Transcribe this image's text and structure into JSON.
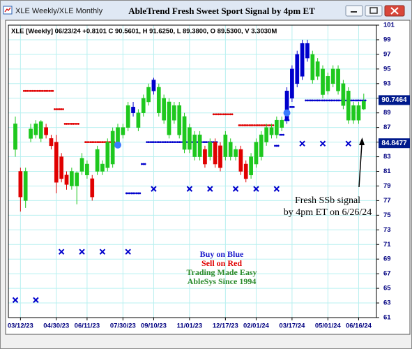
{
  "window": {
    "title": "XLE Weekly/XLE Monthly"
  },
  "chart_data": {
    "type": "candlestick",
    "title": "AbleTrend Fresh Sweet Sport Signal by 4pm ET",
    "subtitle": "XLE [Weekly] 06/23/24 +0.8101 C 90.5601, H 91.6250, L 89.3800, O 89.5300, V 3.3030M",
    "categories": [
      null,
      "03/12/23",
      null,
      null,
      null,
      null,
      null,
      null,
      "04/30/23",
      null,
      null,
      null,
      null,
      null,
      "06/11/23",
      null,
      null,
      null,
      null,
      null,
      null,
      "07/30/23",
      null,
      null,
      null,
      null,
      null,
      "09/10/23",
      null,
      null,
      null,
      null,
      null,
      null,
      "11/01/23",
      null,
      null,
      null,
      null,
      null,
      null,
      "12/17/23",
      null,
      null,
      null,
      null,
      null,
      "02/01/24",
      null,
      null,
      null,
      null,
      null,
      null,
      "03/17/24",
      null,
      null,
      null,
      null,
      null,
      null,
      "05/01/24",
      null,
      null,
      null,
      null,
      null,
      "06/16/24",
      null
    ],
    "open": [
      84,
      81,
      77,
      85.5,
      86,
      85.5,
      87,
      85.5,
      85,
      83,
      80.5,
      79,
      79,
      81,
      80.5,
      80,
      81,
      81,
      81.5,
      82,
      85,
      86,
      87,
      89,
      89,
      89,
      90.5,
      92,
      92.5,
      91,
      86,
      90,
      86,
      88.5,
      84,
      86,
      83,
      84,
      83,
      85,
      84.5,
      83,
      85,
      83,
      84,
      82,
      80.5,
      82,
      83,
      85,
      86,
      86,
      87,
      88,
      91,
      93,
      94,
      98.5,
      97,
      96,
      95,
      92,
      95,
      95,
      93,
      92,
      88,
      88,
      89.53
    ],
    "high": [
      88.5,
      81.5,
      81.5,
      87.5,
      88,
      88,
      87.5,
      86,
      86,
      83.5,
      81,
      81.5,
      81,
      83.5,
      82.5,
      80.5,
      84.5,
      82.5,
      85.5,
      87,
      87.5,
      87.5,
      90.5,
      90.5,
      89.5,
      91.5,
      93,
      93.8,
      93,
      91.5,
      91,
      90.5,
      90.5,
      89,
      87.5,
      86.5,
      86.5,
      84.5,
      85.5,
      85.5,
      85,
      86.5,
      85.5,
      84.5,
      84.5,
      82.5,
      83.5,
      85.5,
      86.5,
      87.5,
      87.5,
      88.5,
      88.5,
      92.5,
      95.5,
      97.5,
      99,
      99,
      97.5,
      96.5,
      95.5,
      94.5,
      95.5,
      95.5,
      93.5,
      92.5,
      90.5,
      90.5,
      91.625
    ],
    "low": [
      83,
      75.5,
      76,
      85,
      85.5,
      85,
      85.5,
      84,
      78,
      79.5,
      78.5,
      78.5,
      76.5,
      80.5,
      80,
      77,
      80.5,
      80.5,
      81,
      81.5,
      84.5,
      85.5,
      86.5,
      88.5,
      86.5,
      88.5,
      90,
      91.5,
      88.5,
      87.5,
      85.5,
      87.5,
      85.5,
      83.5,
      83.5,
      82.5,
      82.5,
      81.5,
      82.5,
      81.5,
      81,
      82.5,
      82.5,
      82.5,
      80.5,
      79.5,
      80,
      81.5,
      82.5,
      84.5,
      85.5,
      85.5,
      86.5,
      87.5,
      90.5,
      92.5,
      93.5,
      96,
      93,
      93.5,
      91,
      91.5,
      92.5,
      91.5,
      89.5,
      87.5,
      87.5,
      87.5,
      89.38
    ],
    "close": [
      87.5,
      77.5,
      81,
      86.8,
      87.5,
      87.8,
      86,
      84.5,
      79.5,
      80,
      79.2,
      81,
      80.8,
      82.8,
      82,
      77.5,
      84,
      82,
      85,
      86.5,
      87,
      87,
      90,
      89.8,
      87,
      91,
      92.5,
      93.5,
      89,
      88,
      90.5,
      88,
      90,
      84,
      87,
      83,
      86,
      82,
      85,
      82,
      81.5,
      86,
      83,
      84,
      81,
      80,
      83,
      85,
      86,
      87,
      87,
      88,
      88,
      92,
      95,
      97,
      98.5,
      96.5,
      93.5,
      94,
      91.5,
      94,
      93,
      92,
      90,
      88,
      90,
      90,
      90.5601
    ],
    "colors": [
      "#1ec81e",
      "#e00000",
      "#1ec81e",
      "#1ec81e",
      "#1ec81e",
      "#1ec81e",
      "#e00000",
      "#e00000",
      "#e00000",
      "#e00000",
      "#e00000",
      "#1ec81e",
      "#1ec81e",
      "#1ec81e",
      "#1ec81e",
      "#e00000",
      "#1ec81e",
      "#1ec81e",
      "#1ec81e",
      "#1ec81e",
      "#1ec81e",
      "#1ec81e",
      "#1ec81e",
      "#0000cc",
      "#1ec81e",
      "#1ec81e",
      "#1ec81e",
      "#0000cc",
      "#1ec81e",
      "#1ec81e",
      "#1ec81e",
      "#1ec81e",
      "#1ec81e",
      "#1ec81e",
      "#1ec81e",
      "#1ec81e",
      "#1ec81e",
      "#e00000",
      "#1ec81e",
      "#e00000",
      "#e00000",
      "#1ec81e",
      "#1ec81e",
      "#1ec81e",
      "#e00000",
      "#e00000",
      "#1ec81e",
      "#1ec81e",
      "#1ec81e",
      "#1ec81e",
      "#1ec81e",
      "#1ec81e",
      "#1ec81e",
      "#0000cc",
      "#0000cc",
      "#0000cc",
      "#0000cc",
      "#0000cc",
      "#1ec81e",
      "#1ec81e",
      "#1ec81e",
      "#1ec81e",
      "#1ec81e",
      "#1ec81e",
      "#1ec81e",
      "#1ec81e",
      "#1ec81e",
      "#1ec81e",
      "#1ec81e"
    ],
    "series": [
      {
        "color": "#e00000",
        "marker": "dots",
        "values": [
          null,
          null,
          92,
          92,
          92,
          92,
          92,
          92,
          89.5,
          89.5,
          87.5,
          87.5,
          87.5,
          null,
          85,
          85,
          85,
          85,
          85,
          85,
          null,
          null,
          null,
          null,
          null,
          null,
          null,
          null,
          null,
          null,
          null,
          null,
          null,
          null,
          null,
          null,
          null,
          null,
          null,
          88.8,
          88.8,
          88.8,
          88.8,
          null,
          87.3,
          87.3,
          87.3,
          87.3,
          87.3,
          87.3,
          87.3,
          null,
          null,
          null,
          null,
          null,
          null,
          null,
          null,
          null,
          null,
          null,
          null,
          null,
          null,
          null,
          null,
          null,
          null
        ]
      },
      {
        "color": "#0000cc",
        "marker": "dots",
        "values": [
          null,
          null,
          null,
          null,
          null,
          null,
          null,
          null,
          null,
          null,
          null,
          null,
          null,
          null,
          null,
          null,
          null,
          null,
          null,
          null,
          null,
          null,
          78,
          78,
          78,
          82,
          85,
          85,
          85,
          85,
          85,
          85,
          85,
          85,
          85,
          85,
          85,
          85,
          85,
          85,
          null,
          null,
          null,
          null,
          null,
          null,
          null,
          null,
          null,
          null,
          null,
          84.5,
          86,
          88,
          89.8,
          null,
          null,
          90.7,
          90.7,
          90.7,
          90.7,
          90.7,
          90.7,
          90.7,
          90.7,
          90.7,
          90.7,
          90.7,
          90.7
        ]
      },
      {
        "color": "#0000cc",
        "marker": "cross",
        "values": [
          63.4,
          null,
          null,
          null,
          63.4,
          null,
          null,
          null,
          null,
          70,
          null,
          null,
          null,
          70,
          null,
          null,
          null,
          70,
          null,
          null,
          null,
          null,
          70,
          null,
          null,
          null,
          null,
          78.6,
          null,
          null,
          null,
          null,
          null,
          null,
          78.6,
          null,
          null,
          null,
          78.6,
          null,
          null,
          null,
          null,
          78.6,
          null,
          null,
          null,
          78.6,
          null,
          null,
          null,
          78.6,
          null,
          null,
          null,
          null,
          84.8,
          null,
          null,
          null,
          84.8,
          null,
          null,
          null,
          null,
          84.8,
          null,
          null,
          null
        ]
      },
      {
        "color": "#3a7bff",
        "marker": "circle",
        "values": [
          null,
          null,
          null,
          null,
          null,
          null,
          null,
          null,
          null,
          null,
          null,
          null,
          null,
          null,
          null,
          null,
          null,
          null,
          null,
          null,
          84.6,
          null,
          null,
          null,
          null,
          null,
          null,
          null,
          null,
          null,
          null,
          null,
          null,
          null,
          null,
          null,
          null,
          null,
          null,
          null,
          null,
          null,
          null,
          null,
          null,
          null,
          null,
          null,
          null,
          null,
          null,
          null,
          null,
          89,
          null,
          null,
          null,
          null,
          null,
          null,
          null,
          null,
          null,
          null,
          null,
          null,
          null,
          null,
          null
        ]
      }
    ],
    "price_labels": [
      90.7464,
      84.8477
    ],
    "ylim": [
      61,
      101
    ],
    "yticks": [
      61,
      63,
      65,
      67,
      69,
      71,
      73,
      75,
      77,
      79,
      81,
      83,
      85,
      87,
      89,
      91,
      93,
      95,
      97,
      99,
      101
    ],
    "grid": true,
    "annotations": [
      "Fresh SSb signal",
      "by 4pm ET on 6/26/24"
    ],
    "notes": [
      "Buy on Blue",
      "Sell on Red",
      "Trading Made Easy",
      "AbleSys Since 1994"
    ]
  }
}
